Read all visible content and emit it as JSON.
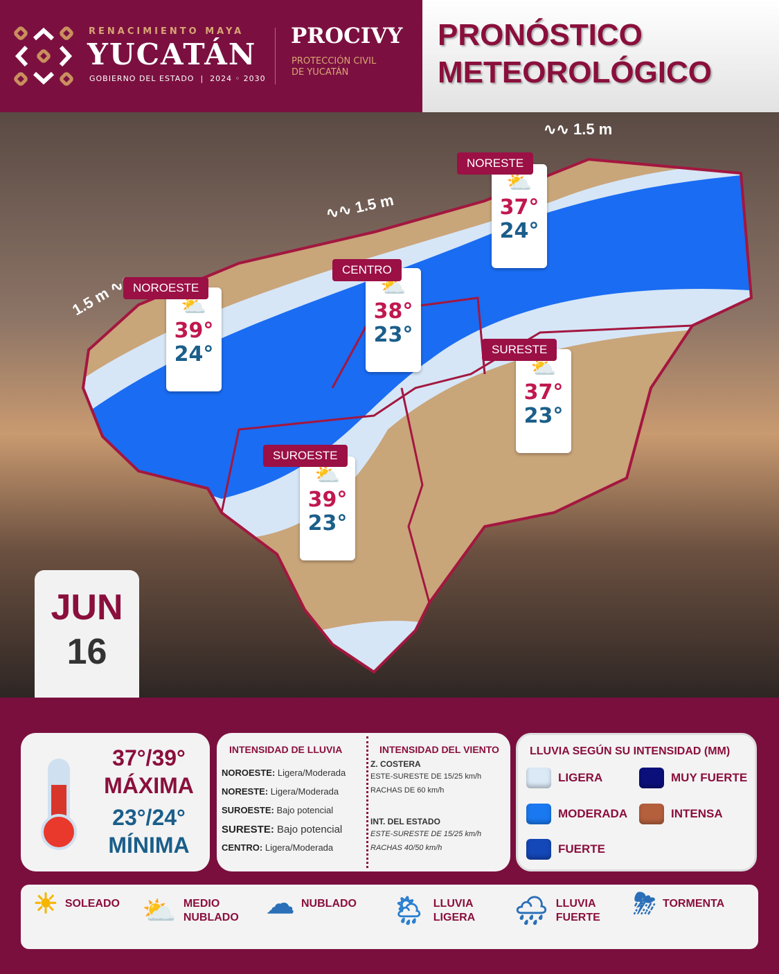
{
  "header": {
    "logo_top": "RENACIMIENTO MAYA",
    "logo_main": "YUCATÁN",
    "logo_sub": "GOBIERNO DEL ESTADO",
    "logo_years": "2024 ◦ 2030",
    "agency": "PROCIVY",
    "agency_sub1": "PROTECCIÓN CIVIL",
    "agency_sub2": "DE YUCATÁN",
    "title1": "PRONÓSTICO",
    "title2": "METEOROLÓGICO"
  },
  "map": {
    "waves": [
      "1.5 m",
      "1.5 m",
      "1.5 m"
    ],
    "regions": [
      {
        "name": "NOROESTE",
        "icon": "partly-cloudy-rain-icon",
        "max": "39°",
        "min": "24°"
      },
      {
        "name": "CENTRO",
        "icon": "partly-cloudy-rain-icon",
        "max": "38°",
        "min": "23°"
      },
      {
        "name": "NORESTE",
        "icon": "partly-cloudy-rain-icon",
        "max": "37°",
        "min": "24°"
      },
      {
        "name": "SURESTE",
        "icon": "partly-cloudy-icon",
        "max": "37°",
        "min": "23°"
      },
      {
        "name": "SUROESTE",
        "icon": "partly-cloudy-icon",
        "max": "39°",
        "min": "23°"
      }
    ],
    "colors": {
      "ligera": "#d6e6f7",
      "moderada": "#1a6cf2",
      "sin_lluvia": "#c9a57a",
      "border": "#a3173f"
    }
  },
  "date": {
    "month": "JUN",
    "day": "16"
  },
  "temps": {
    "max": "37°/39°",
    "max_label": "MÁXIMA",
    "min": "23°/24°",
    "min_label": "MÍNIMA"
  },
  "rain": {
    "title": "INTENSIDAD DE LLUVIA",
    "rows": [
      {
        "region": "NOROESTE:",
        "value": "Ligera/Moderada"
      },
      {
        "region": "NORESTE:",
        "value": "Ligera/Moderada"
      },
      {
        "region": "SUROESTE:",
        "value": "Bajo potencial"
      },
      {
        "region": "SURESTE:",
        "value": "Bajo potencial"
      },
      {
        "region": "CENTRO:",
        "value": "Ligera/Moderada"
      }
    ]
  },
  "wind": {
    "title": "INTENSIDAD DEL VIENTO",
    "coast_title": "Z. COSTERA",
    "coast_1": "ESTE-SURESTE  DE 15/25 km/h",
    "coast_2": "RACHAS DE 60 km/h",
    "int_title": "INT. DEL ESTADO",
    "int_1": "ESTE-SURESTE  DE 15/25 km/h",
    "int_2": "RACHAS 40/50 km/h"
  },
  "legend": {
    "title": "LLUVIA SEGÚN SU INTENSIDAD (MM)",
    "items": [
      {
        "label": "LIGERA",
        "color": "#dbe9f7"
      },
      {
        "label": "MUY FUERTE",
        "color": "#0b0f7a"
      },
      {
        "label": "MODERADA",
        "color": "#1a78f0"
      },
      {
        "label": "INTENSA",
        "color": "#b5603d"
      },
      {
        "label": "FUERTE",
        "color": "#1447b8"
      }
    ]
  },
  "conditions": [
    {
      "label": "SOLEADO",
      "icon": "sun-icon"
    },
    {
      "label": "MEDIO NUBLADO",
      "icon": "partly-cloudy-icon"
    },
    {
      "label": "NUBLADO",
      "icon": "cloud-icon"
    },
    {
      "label": "LLUVIA LIGERA",
      "icon": "light-rain-icon"
    },
    {
      "label": "LLUVIA FUERTE",
      "icon": "heavy-rain-icon"
    },
    {
      "label": "TORMENTA",
      "icon": "storm-icon"
    }
  ]
}
